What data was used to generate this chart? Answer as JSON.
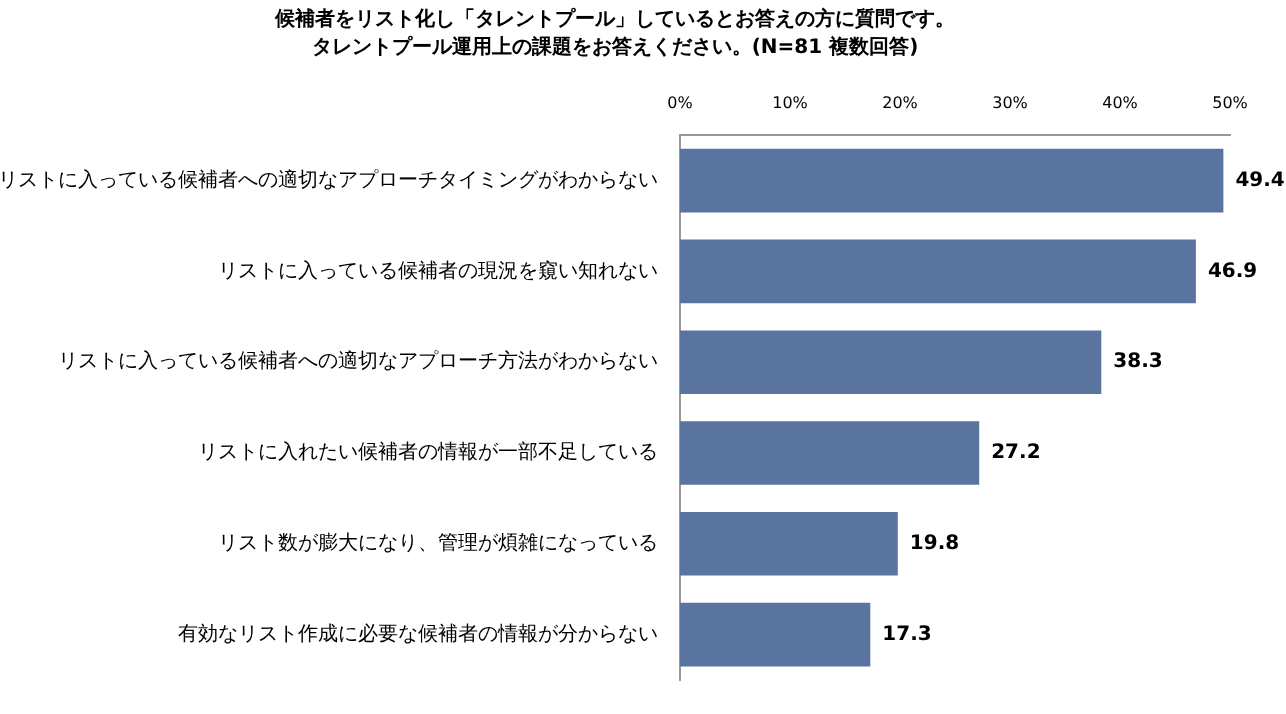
{
  "chart_data": {
    "type": "bar",
    "orientation": "horizontal",
    "title": "候補者をリスト化し「タレントプール」しているとお答えの方に質問です。",
    "subtitle": "タレントプール運用上の課題をお答えください。(N=81 複数回答)",
    "categories": [
      "リストに入っている候補者への適切なアプローチタイミングがわからない",
      "リストに入っている候補者の現況を窺い知れない",
      "リストに入っている候補者への適切なアプローチ方法がわからない",
      "リストに入れたい候補者の情報が一部不足している",
      "リスト数が膨大になり、管理が煩雑になっている",
      "有効なリスト作成に必要な候補者の情報が分からない"
    ],
    "values": [
      49.4,
      46.9,
      38.3,
      27.2,
      19.8,
      17.3
    ],
    "color": "#58749f",
    "xlim": [
      0,
      50
    ],
    "xticks": [
      {
        "value": 0,
        "label": "0%"
      },
      {
        "value": 10,
        "label": "10%"
      },
      {
        "value": 20,
        "label": "20%"
      },
      {
        "value": 30,
        "label": "30%"
      },
      {
        "value": 40,
        "label": "40%"
      },
      {
        "value": 50,
        "label": "50%"
      }
    ],
    "data_labels": true,
    "grid": false,
    "legend": false
  }
}
